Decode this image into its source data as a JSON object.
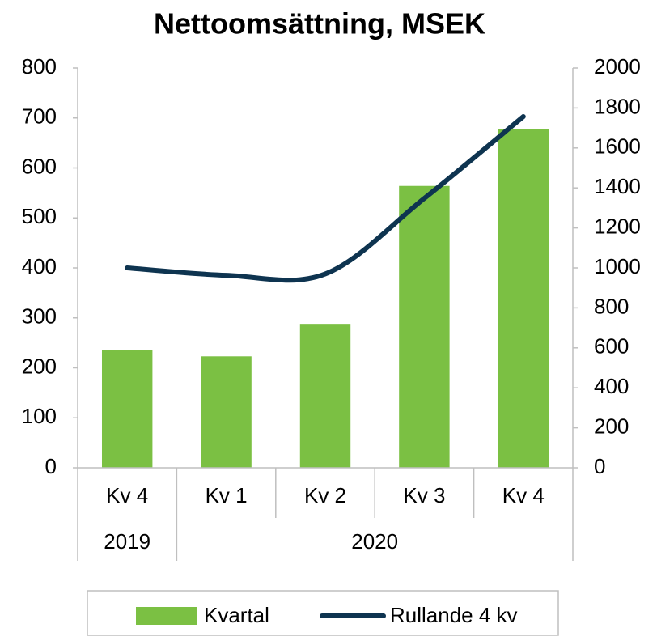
{
  "chart_data": {
    "type": "bar_line",
    "title": "Nettoomsättning, MSEK",
    "categories": [
      "Kv 4",
      "Kv 1",
      "Kv 2",
      "Kv 3",
      "Kv 4"
    ],
    "category_groups": [
      {
        "label": "2019",
        "span": 1
      },
      {
        "label": "2020",
        "span": 4
      }
    ],
    "series": [
      {
        "name": "Kvartal",
        "type": "bar",
        "color": "#7bc043",
        "values": [
          236,
          223,
          288,
          564,
          678
        ]
      },
      {
        "name": "Rullande 4 kv",
        "type": "line",
        "color": "#0e3450",
        "axis": "y2",
        "smooth": true,
        "values": [
          1000,
          963,
          970,
          1348,
          1757
        ]
      }
    ],
    "ylim": [
      0,
      800
    ],
    "yticks": [
      0,
      100,
      200,
      300,
      400,
      500,
      600,
      700,
      800
    ],
    "y2lim": [
      0,
      2000
    ],
    "y2ticks": [
      0,
      200,
      400,
      600,
      800,
      1000,
      1200,
      1400,
      1600,
      1800,
      2000
    ],
    "legend": "bottom"
  }
}
